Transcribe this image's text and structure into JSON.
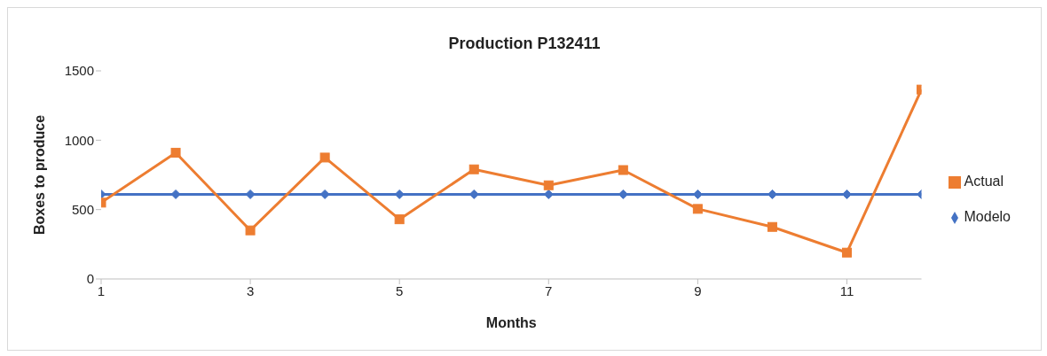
{
  "chart_data": {
    "type": "line",
    "title": "Production P132411",
    "xlabel": "Months",
    "ylabel": "Boxes to produce",
    "x": [
      1,
      2,
      3,
      4,
      5,
      6,
      7,
      8,
      9,
      10,
      11,
      12
    ],
    "series": [
      {
        "name": "Modelo",
        "color": "#4472c4",
        "marker": "diamond",
        "values": [
          610,
          610,
          610,
          610,
          610,
          610,
          610,
          610,
          610,
          610,
          610,
          610
        ]
      },
      {
        "name": "Actual",
        "color": "#ed7d31",
        "marker": "square",
        "values": [
          550,
          910,
          350,
          875,
          430,
          790,
          675,
          785,
          505,
          375,
          190,
          1365
        ]
      }
    ],
    "xlim": [
      1,
      12
    ],
    "xticks": [
      1,
      3,
      5,
      7,
      9,
      11
    ],
    "ylim": [
      0,
      1500
    ],
    "yticks": [
      0,
      500,
      1000,
      1500
    ],
    "grid": false,
    "legend": "right",
    "line_style": "solid"
  }
}
